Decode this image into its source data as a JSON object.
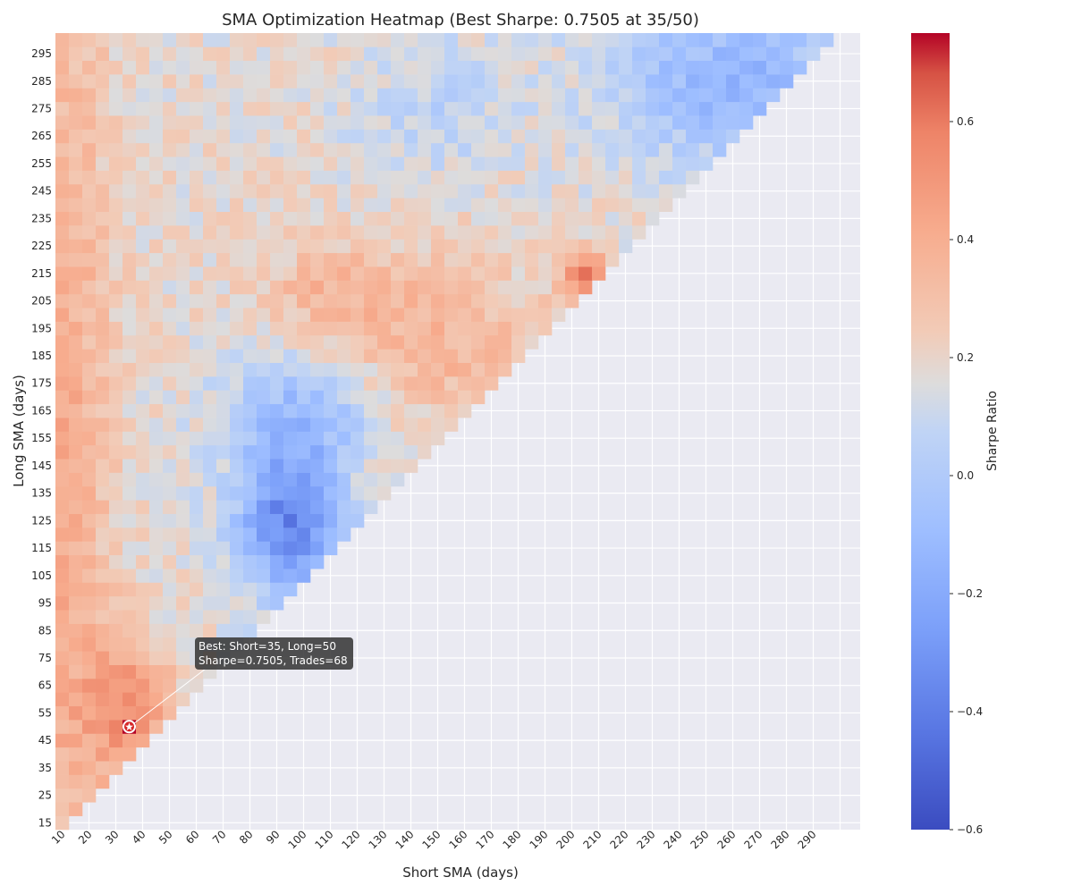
{
  "chart_data": {
    "type": "heatmap",
    "title": "SMA Optimization Heatmap (Best Sharpe: 0.7505 at 35/50)",
    "xlabel": "Short SMA (days)",
    "ylabel": "Long SMA (days)",
    "colorbar_label": "Sharpe Ratio",
    "colormap": "coolwarm",
    "background": "#eaeaf2",
    "short_range": [
      10,
      305
    ],
    "long_range": [
      15,
      300
    ],
    "step": 5,
    "x_ticks": [
      "10",
      "20",
      "30",
      "40",
      "50",
      "60",
      "70",
      "80",
      "90",
      "100",
      "110",
      "120",
      "130",
      "140",
      "150",
      "160",
      "170",
      "180",
      "190",
      "200",
      "210",
      "220",
      "230",
      "240",
      "250",
      "260",
      "270",
      "280",
      "290"
    ],
    "y_ticks": [
      "15",
      "25",
      "35",
      "45",
      "55",
      "65",
      "75",
      "85",
      "95",
      "105",
      "115",
      "125",
      "135",
      "145",
      "155",
      "165",
      "175",
      "185",
      "195",
      "205",
      "215",
      "225",
      "235",
      "245",
      "255",
      "265",
      "275",
      "285",
      "295"
    ],
    "colorbar_ticks": [
      "0.6",
      "0.4",
      "0.2",
      "0.0",
      "−0.2",
      "−0.4",
      "−0.6"
    ],
    "colorbar_tick_values": [
      0.6,
      0.4,
      0.2,
      0.0,
      -0.2,
      -0.4,
      -0.6
    ],
    "vmin": -0.6,
    "vmax": 0.75,
    "value_regions": [
      {
        "short": [
          10,
          30
        ],
        "long": [
          15,
          300
        ],
        "sharpe": 0.35,
        "note": "left columns mostly orange, peaks 0.6 near long 25-75"
      },
      {
        "short": [
          30,
          50
        ],
        "long": [
          40,
          75
        ],
        "sharpe": 0.6
      },
      {
        "short": [
          80,
          115
        ],
        "long": [
          100,
          160
        ],
        "sharpe": -0.35
      },
      {
        "short": [
          90,
          170
        ],
        "long": [
          160,
          230
        ],
        "sharpe": 0.3
      },
      {
        "short": [
          200,
          215
        ],
        "long": [
          205,
          225
        ],
        "sharpe": 0.55
      },
      {
        "short": [
          220,
          305
        ],
        "long": [
          230,
          300
        ],
        "sharpe": -0.2
      }
    ],
    "best": {
      "short": 35,
      "long": 50,
      "sharpe": 0.7505,
      "trades": 68
    },
    "annotation": {
      "line1": "Best: Short=35, Long=50",
      "line2": "Sharpe=0.7505, Trades=68"
    }
  }
}
